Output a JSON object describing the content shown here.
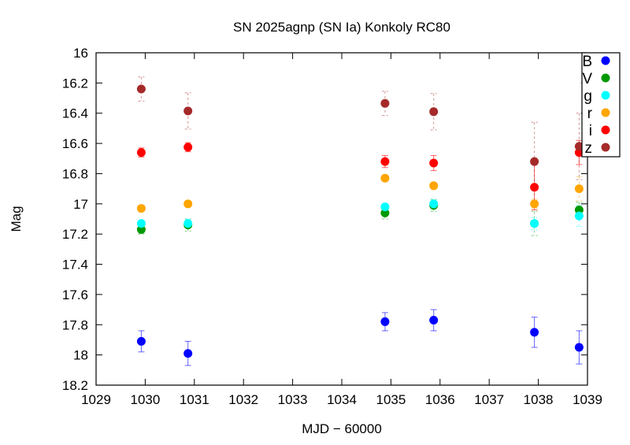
{
  "chart_data": {
    "type": "scatter",
    "title": "SN 2025agnp (SN Ia) Konkoly RC80",
    "xlabel": "MJD − 60000",
    "ylabel": "Mag",
    "xlim": [
      1029,
      1039
    ],
    "ylim": [
      18.2,
      16
    ],
    "y_inverted": true,
    "grid": false,
    "legend_placement": "top-right",
    "xticks": [
      "1029",
      "1030",
      "1031",
      "1032",
      "1033",
      "1034",
      "1035",
      "1036",
      "1037",
      "1038",
      "1039"
    ],
    "yticks": [
      "16",
      "16.2",
      "16.4",
      "16.6",
      "16.8",
      "17",
      "17.2",
      "17.4",
      "17.6",
      "17.8",
      "18",
      "18.2"
    ],
    "x": [
      1029.92,
      1030.87,
      1034.88,
      1035.87,
      1037.92,
      1038.83
    ],
    "series": [
      {
        "name": "B",
        "color": "#0000ff",
        "values": [
          17.91,
          17.99,
          17.78,
          17.77,
          17.85,
          17.95
        ],
        "errors": [
          0.07,
          0.08,
          0.06,
          0.07,
          0.1,
          0.11
        ],
        "err_style": "solid"
      },
      {
        "name": "V",
        "color": "#009900",
        "values": [
          17.17,
          17.14,
          17.06,
          17.01,
          17.13,
          17.04
        ],
        "errors": [
          0.03,
          0.04,
          0.04,
          0.04,
          0.08,
          0.05
        ],
        "err_style": "dotted"
      },
      {
        "name": "g",
        "color": "#00ffff",
        "values": [
          17.13,
          17.13,
          17.02,
          17.0,
          17.13,
          17.08
        ],
        "errors": [
          0.02,
          0.03,
          0.02,
          0.03,
          0.04,
          0.07
        ],
        "err_style": "dotted"
      },
      {
        "name": "r",
        "color": "#ffa500",
        "values": [
          17.03,
          17.0,
          16.83,
          16.88,
          17.0,
          16.9
        ],
        "errors": [
          0.02,
          0.02,
          0.02,
          0.02,
          0.03,
          0.08
        ],
        "err_style": "dotted"
      },
      {
        "name": "i",
        "color": "#ff0000",
        "values": [
          16.66,
          16.625,
          16.72,
          16.73,
          16.89,
          16.66
        ],
        "errors": [
          0.03,
          0.03,
          0.04,
          0.05,
          0.15,
          0.08
        ],
        "err_style": "solid"
      },
      {
        "name": "z",
        "color": "#a52a2a",
        "values": [
          16.24,
          16.385,
          16.335,
          16.39,
          16.72,
          16.62
        ],
        "errors": [
          0.08,
          0.12,
          0.08,
          0.12,
          0.26,
          0.22
        ],
        "err_style": "dotted"
      }
    ]
  }
}
